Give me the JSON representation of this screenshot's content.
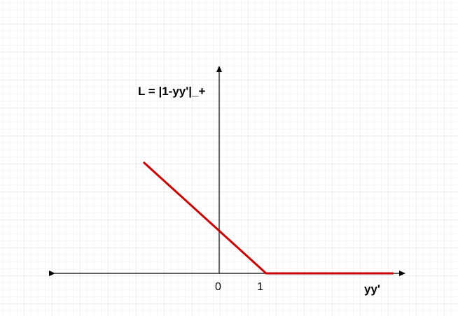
{
  "diagram": {
    "title": "L = |1-yy'|_+",
    "xlabel": "yy'",
    "ticks": [
      "0",
      "1"
    ],
    "curve_color": "#cc0000",
    "axis_color": "#000000"
  }
}
